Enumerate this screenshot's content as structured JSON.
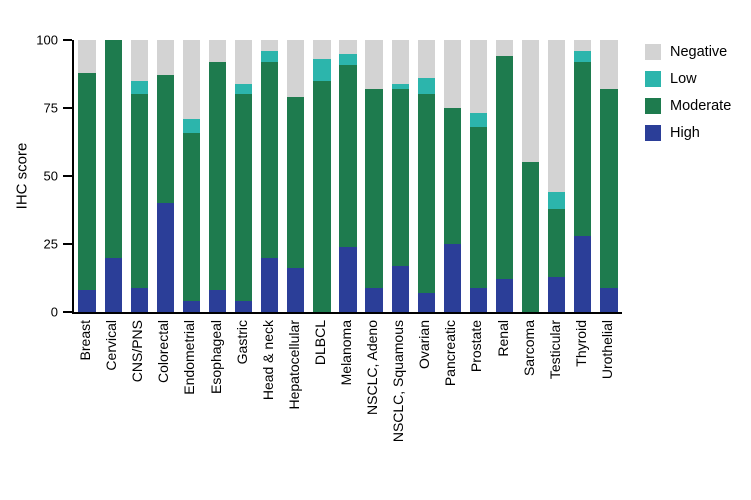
{
  "chart_data": {
    "type": "bar",
    "subtype": "stacked",
    "title": "",
    "xlabel": "",
    "ylabel": "IHC score",
    "ylim": [
      0,
      100
    ],
    "yticks": [
      0,
      25,
      50,
      75,
      100
    ],
    "grid": false,
    "legend_position": "right",
    "legend_order": [
      "Negative",
      "Low",
      "Moderate",
      "High"
    ],
    "categories": [
      "Breast",
      "Cervical",
      "CNS/PNS",
      "Colorectal",
      "Endometrial",
      "Esophageal",
      "Gastric",
      "Head & neck",
      "Hepatocellular",
      "DLBCL",
      "Melanoma",
      "NSCLC, Adeno",
      "NSCLC, Squamous",
      "Ovarian",
      "Pancreatic",
      "Prostate",
      "Renal",
      "Sarcoma",
      "Testicular",
      "Thyroid",
      "Urothelial"
    ],
    "series": [
      {
        "name": "High",
        "color": "#2b3e98",
        "values": [
          8,
          20,
          9,
          40,
          4,
          8,
          4,
          20,
          16,
          0,
          24,
          9,
          17,
          7,
          25,
          9,
          12,
          0,
          13,
          28,
          9
        ]
      },
      {
        "name": "Moderate",
        "color": "#1e7b4e",
        "values": [
          80,
          80,
          71,
          47,
          62,
          84,
          76,
          72,
          63,
          85,
          67,
          73,
          65,
          73,
          50,
          59,
          82,
          55,
          25,
          64,
          73
        ]
      },
      {
        "name": "Low",
        "color": "#2cb5ac",
        "values": [
          0,
          0,
          5,
          0,
          5,
          0,
          4,
          4,
          0,
          8,
          4,
          0,
          2,
          6,
          0,
          5,
          0,
          0,
          6,
          4,
          0
        ]
      },
      {
        "name": "Negative",
        "color": "#d3d3d3",
        "values": [
          12,
          0,
          15,
          13,
          29,
          8,
          16,
          4,
          21,
          7,
          5,
          18,
          16,
          14,
          25,
          27,
          6,
          45,
          56,
          4,
          18
        ]
      }
    ]
  }
}
